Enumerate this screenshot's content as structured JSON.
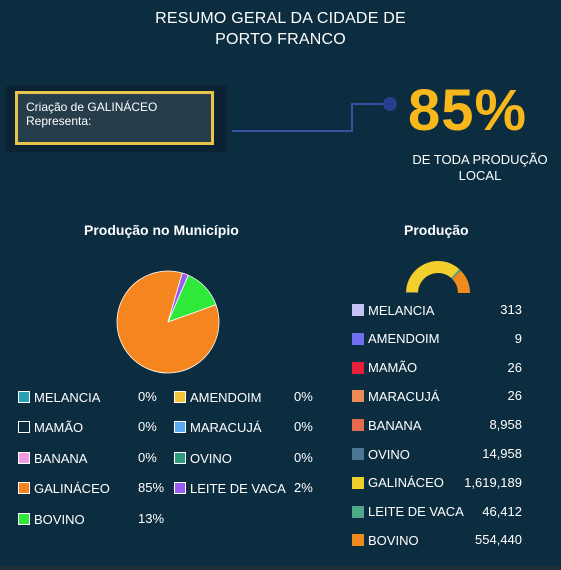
{
  "header": {
    "title_line1": "RESUMO GERAL DA CIDADE DE",
    "title_line2": "PORTO FRANCO"
  },
  "highlight_card": {
    "line1": "Criação de GALINÁCEO",
    "line2": "Representa:"
  },
  "highlight": {
    "percent": "85%",
    "caption_line1": "DE TODA PRODUÇÃO",
    "caption_line2": "LOCAL",
    "color": "#f8b81c"
  },
  "chart_data": [
    {
      "type": "pie",
      "title": "Produção no Município",
      "legend_placement": "bottom",
      "slices": [
        {
          "label": "MELANCIA",
          "value": 0,
          "display": "0%",
          "color": "#2a9fb6"
        },
        {
          "label": "AMENDOIM",
          "value": 0,
          "display": "0%",
          "color": "#f2c43a"
        },
        {
          "label": "MAMÃO",
          "value": 0,
          "display": "0%",
          "color": "#0c2d40"
        },
        {
          "label": "MARACUJÁ",
          "value": 0,
          "display": "0%",
          "color": "#5aa8ef"
        },
        {
          "label": "BANANA",
          "value": 0,
          "display": "0%",
          "color": "#f29ce6"
        },
        {
          "label": "OVINO",
          "value": 0,
          "display": "0%",
          "color": "#2e9b7e"
        },
        {
          "label": "GALINÁCEO",
          "value": 85,
          "display": "85%",
          "color": "#f5861f"
        },
        {
          "label": "LEITE DE VACA",
          "value": 2,
          "display": "2%",
          "color": "#9b5cf0"
        },
        {
          "label": "BOVINO",
          "value": 13,
          "display": "13%",
          "color": "#2ee83a"
        }
      ]
    },
    {
      "type": "pie",
      "subtype": "half-donut",
      "title": "Produção",
      "legend_placement": "bottom",
      "slices": [
        {
          "label": "MELANCIA",
          "value": 313,
          "display": "313",
          "color": "#c6c2f5"
        },
        {
          "label": "AMENDOIM",
          "value": 9,
          "display": "9",
          "color": "#6f6ff0"
        },
        {
          "label": "MAMÃO",
          "value": 26,
          "display": "26",
          "color": "#e8213a"
        },
        {
          "label": "MARACUJÁ",
          "value": 26,
          "display": "26",
          "color": "#ef8a54"
        },
        {
          "label": "BANANA",
          "value": 8958,
          "display": "8,958",
          "color": "#e86a4e"
        },
        {
          "label": "OVINO",
          "value": 14958,
          "display": "14,958",
          "color": "#4d7594"
        },
        {
          "label": "GALINÁCEO",
          "value": 1619189,
          "display": "1,619,189",
          "color": "#f2cf2c"
        },
        {
          "label": "LEITE DE VACA",
          "value": 46412,
          "display": "46,412",
          "color": "#4ea98a"
        },
        {
          "label": "BOVINO",
          "value": 554440,
          "display": "554,440",
          "color": "#ef8a1e"
        }
      ]
    }
  ]
}
